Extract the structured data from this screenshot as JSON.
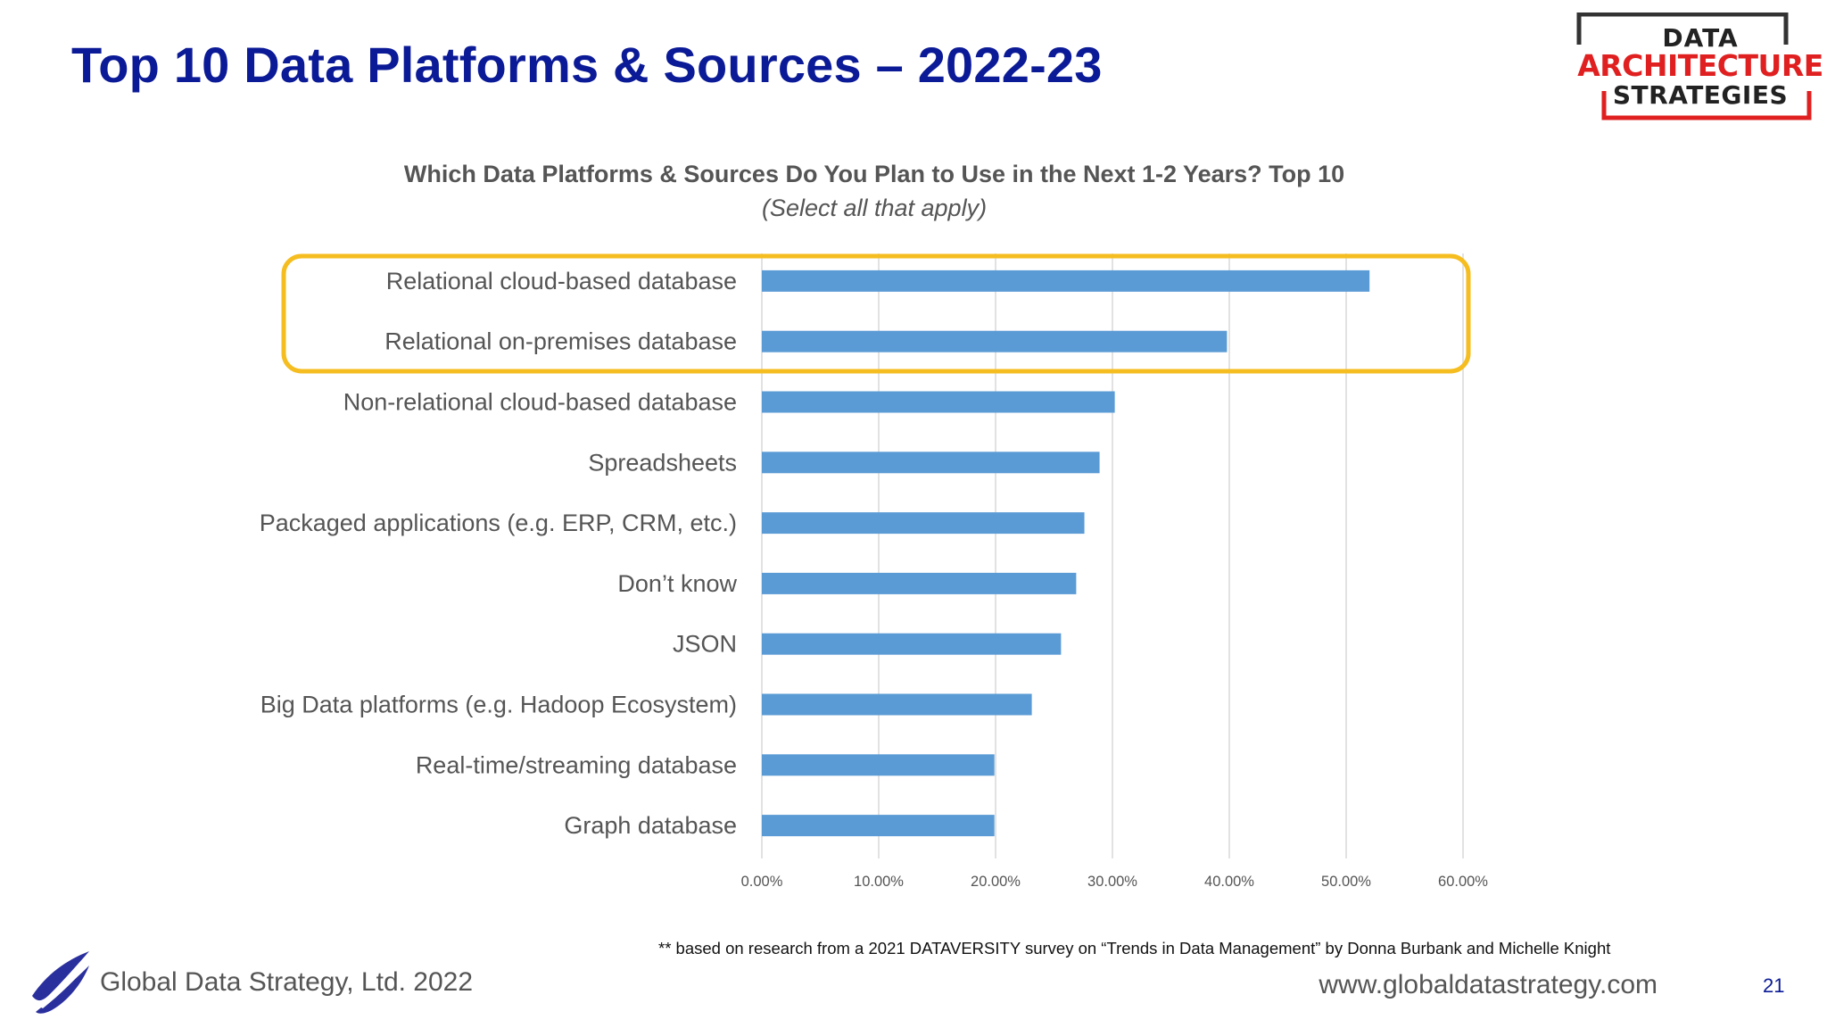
{
  "slide": {
    "title": "Top 10 Data Platforms & Sources – 2022-23",
    "footnote": "** based on research from a 2021 DATAVERSITY survey on “Trends in Data Management” by Donna Burbank and Michelle Knight",
    "company": "Global Data Strategy, Ltd. 2022",
    "website": "www.globaldatastrategy.com",
    "page_number": "21"
  },
  "logo": {
    "line1": "DATA",
    "line2": "ARCHITECTURE",
    "line3": "STRATEGIES",
    "colors": {
      "frame_dark": "#333333",
      "frame_accent": "#e02020"
    }
  },
  "colors": {
    "title": "#0b1a96",
    "bar": "#5b9bd5",
    "highlight": "#f5bd1f",
    "label": "#555555",
    "grid": "#d9d9d9"
  },
  "chart_data": {
    "type": "bar",
    "orientation": "horizontal",
    "title": "Which Data Platforms & Sources Do You Plan to Use in the Next 1-2 Years?  Top 10",
    "subtitle": "(Select all that apply)",
    "categories": [
      "Relational cloud-based database",
      "Relational on-premises database",
      "Non-relational cloud-based database",
      "Spreadsheets",
      "Packaged applications (e.g. ERP, CRM, etc.)",
      "Don’t know",
      "JSON",
      "Big Data platforms (e.g. Hadoop Ecosystem)",
      "Real-time/streaming database",
      "Graph database"
    ],
    "values": [
      0.52,
      0.398,
      0.302,
      0.289,
      0.276,
      0.269,
      0.256,
      0.231,
      0.199,
      0.199
    ],
    "xlim": [
      0,
      0.6
    ],
    "ticks": [
      "0.00%",
      "10.00%",
      "20.00%",
      "30.00%",
      "40.00%",
      "50.00%",
      "60.00%"
    ],
    "tick_values": [
      0,
      0.1,
      0.2,
      0.3,
      0.4,
      0.5,
      0.6
    ],
    "grid": true,
    "highlighted_categories": [
      "Relational cloud-based database",
      "Relational on-premises database"
    ]
  }
}
